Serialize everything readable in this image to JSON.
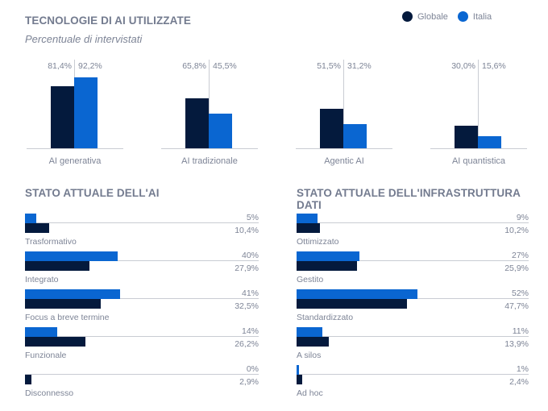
{
  "colors": {
    "globale": "#041a3d",
    "italia": "#0a66d1"
  },
  "legend": [
    {
      "label": "Globale",
      "icon": "dot-navy"
    },
    {
      "label": "Italia",
      "icon": "dot-blue"
    }
  ],
  "chart_data": [
    {
      "type": "bar",
      "title": "TECNOLOGIE DI AI UTILIZZATE",
      "subtitle": "Percentuale di intervistati",
      "categories": [
        "AI generativa",
        "AI tradizionale",
        "Agentic AI",
        "AI quantistica"
      ],
      "series": [
        {
          "name": "Globale",
          "values": [
            81.4,
            65.8,
            51.5,
            30.0
          ],
          "labels": [
            "81,4%",
            "65,8%",
            "51,5%",
            "30,0%"
          ]
        },
        {
          "name": "Italia",
          "values": [
            92.2,
            45.5,
            31.2,
            15.6
          ],
          "labels": [
            "92,2%",
            "45,5%",
            "31,2%",
            "15,6%"
          ]
        }
      ],
      "ylim": [
        0,
        100
      ],
      "legend": "top-right"
    },
    {
      "type": "bar",
      "orientation": "horizontal",
      "title": "STATO ATTUALE DELL'AI",
      "categories": [
        "Trasformativo",
        "Integrato",
        "Focus a breve termine",
        "Funzionale",
        "Disconnesso"
      ],
      "series": [
        {
          "name": "Italia",
          "values": [
            5,
            40,
            41,
            14,
            0
          ],
          "labels": [
            "5%",
            "40%",
            "41%",
            "14%",
            "0%"
          ]
        },
        {
          "name": "Globale",
          "values": [
            10.4,
            27.9,
            32.5,
            26.2,
            2.9
          ],
          "labels": [
            "10,4%",
            "27,9%",
            "32,5%",
            "26,2%",
            "2,9%"
          ]
        }
      ],
      "xlim": [
        0,
        100
      ]
    },
    {
      "type": "bar",
      "orientation": "horizontal",
      "title": "STATO ATTUALE DELL'INFRASTRUTTURA DATI",
      "categories": [
        "Ottimizzato",
        "Gestito",
        "Standardizzato",
        "A silos",
        "Ad hoc"
      ],
      "series": [
        {
          "name": "Italia",
          "values": [
            9,
            27,
            52,
            11,
            1
          ],
          "labels": [
            "9%",
            "27%",
            "52%",
            "11%",
            "1%"
          ]
        },
        {
          "name": "Globale",
          "values": [
            10.2,
            25.9,
            47.7,
            13.9,
            2.4
          ],
          "labels": [
            "10,2%",
            "25,9%",
            "47,7%",
            "13,9%",
            "2,4%"
          ]
        }
      ],
      "xlim": [
        0,
        100
      ]
    }
  ]
}
